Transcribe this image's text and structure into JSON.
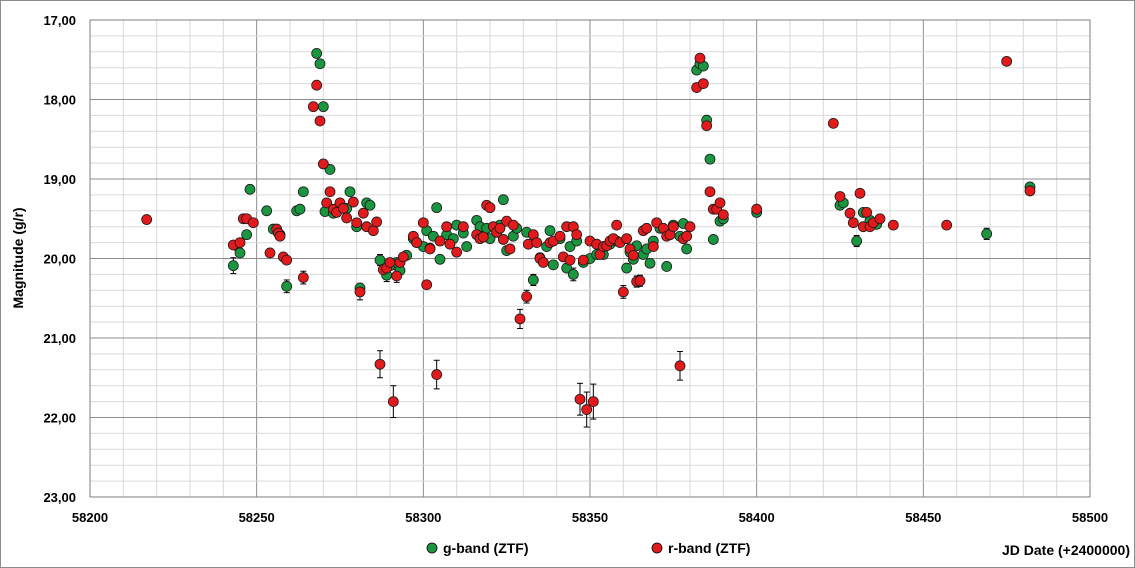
{
  "chart_data": {
    "type": "scatter",
    "title": "",
    "xlabel": "JD Date (+2400000)",
    "ylabel": "Magnitude (g/r)",
    "xlim": [
      58200,
      58500
    ],
    "ylim": [
      17.0,
      23.0
    ],
    "y_inverted": true,
    "grid": true,
    "legend": "bottom",
    "x_tick_labels": [
      "58200",
      "58250",
      "58300",
      "58350",
      "58400",
      "58450",
      "58500"
    ],
    "y_tick_labels": [
      "17,00",
      "18,00",
      "19,00",
      "20,00",
      "21,00",
      "22,00",
      "23,00"
    ],
    "series": [
      {
        "name": "g-band (ZTF)",
        "color": "#1a9641",
        "points": [
          [
            58243,
            20.09
          ],
          [
            58244,
            19.84
          ],
          [
            58245,
            19.93
          ],
          [
            58247,
            19.7
          ],
          [
            58248,
            19.13
          ],
          [
            58253,
            19.4
          ],
          [
            58255,
            19.63
          ],
          [
            58257,
            19.7
          ],
          [
            58259,
            20.35
          ],
          [
            58262,
            19.4
          ],
          [
            58263,
            19.38
          ],
          [
            58264,
            19.16
          ],
          [
            58268,
            17.42
          ],
          [
            58269,
            17.55
          ],
          [
            58270,
            18.09
          ],
          [
            58270.5,
            19.41
          ],
          [
            58272,
            18.88
          ],
          [
            58273,
            19.43
          ],
          [
            58275,
            19.33
          ],
          [
            58277,
            19.37
          ],
          [
            58278,
            19.16
          ],
          [
            58280,
            19.6
          ],
          [
            58281,
            20.37
          ],
          [
            58283,
            19.3
          ],
          [
            58284,
            19.33
          ],
          [
            58287,
            20.02
          ],
          [
            58289,
            20.21
          ],
          [
            58290,
            20.09
          ],
          [
            58292,
            20.05
          ],
          [
            58293,
            20.15
          ],
          [
            58295,
            19.96
          ],
          [
            58297,
            19.75
          ],
          [
            58298,
            19.8
          ],
          [
            58300,
            19.85
          ],
          [
            58301,
            19.65
          ],
          [
            58302,
            19.87
          ],
          [
            58303,
            19.72
          ],
          [
            58304,
            19.36
          ],
          [
            58305,
            20.01
          ],
          [
            58307,
            19.7
          ],
          [
            58309,
            19.75
          ],
          [
            58310,
            19.58
          ],
          [
            58312,
            19.68
          ],
          [
            58313,
            19.85
          ],
          [
            58316,
            19.52
          ],
          [
            58317,
            19.6
          ],
          [
            58318,
            19.72
          ],
          [
            58319,
            19.62
          ],
          [
            58320,
            19.75
          ],
          [
            58322,
            19.67
          ],
          [
            58323,
            19.58
          ],
          [
            58324,
            19.26
          ],
          [
            58325,
            19.9
          ],
          [
            58327,
            19.72
          ],
          [
            58328,
            19.62
          ],
          [
            58331,
            19.67
          ],
          [
            58333,
            20.27
          ],
          [
            58335,
            19.99
          ],
          [
            58337,
            19.85
          ],
          [
            58338,
            19.65
          ],
          [
            58339,
            20.08
          ],
          [
            58341,
            19.75
          ],
          [
            58343,
            20.12
          ],
          [
            58344,
            19.85
          ],
          [
            58345,
            20.2
          ],
          [
            58346,
            19.78
          ],
          [
            58348,
            20.05
          ],
          [
            58350,
            20.0
          ],
          [
            58352,
            19.95
          ],
          [
            58354,
            19.95
          ],
          [
            58356,
            19.82
          ],
          [
            58358,
            19.78
          ],
          [
            58361,
            20.12
          ],
          [
            58362,
            19.92
          ],
          [
            58363,
            20.01
          ],
          [
            58364,
            19.84
          ],
          [
            58366,
            19.95
          ],
          [
            58367,
            19.88
          ],
          [
            58368,
            20.06
          ],
          [
            58369,
            19.78
          ],
          [
            58371,
            19.62
          ],
          [
            58373,
            20.1
          ],
          [
            58374,
            19.7
          ],
          [
            58375,
            19.58
          ],
          [
            58377,
            19.72
          ],
          [
            58378,
            19.56
          ],
          [
            58379,
            19.88
          ],
          [
            58382,
            17.63
          ],
          [
            58383,
            17.55
          ],
          [
            58384,
            17.58
          ],
          [
            58385,
            18.26
          ],
          [
            58386,
            18.75
          ],
          [
            58387,
            19.76
          ],
          [
            58389,
            19.53
          ],
          [
            58390,
            19.5
          ],
          [
            58400,
            19.42
          ],
          [
            58425,
            19.33
          ],
          [
            58426,
            19.3
          ],
          [
            58430,
            19.78
          ],
          [
            58432,
            19.42
          ],
          [
            58434,
            19.52
          ],
          [
            58436,
            19.57
          ],
          [
            58469,
            19.69
          ],
          [
            58482,
            19.1
          ]
        ]
      },
      {
        "name": "r-band (ZTF)",
        "color": "#e31a1c",
        "points": [
          [
            58217,
            19.51
          ],
          [
            58243,
            19.83
          ],
          [
            58245,
            19.8
          ],
          [
            58246,
            19.5
          ],
          [
            58247,
            19.5
          ],
          [
            58249,
            19.55
          ],
          [
            58254,
            19.93
          ],
          [
            58256,
            19.63
          ],
          [
            58256.5,
            19.68
          ],
          [
            58257,
            19.72
          ],
          [
            58258,
            19.98
          ],
          [
            58259,
            20.02
          ],
          [
            58264,
            20.24
          ],
          [
            58267,
            18.09
          ],
          [
            58268,
            17.82
          ],
          [
            58269,
            18.27
          ],
          [
            58270,
            18.81
          ],
          [
            58271,
            19.3
          ],
          [
            58272,
            19.16
          ],
          [
            58273,
            19.38
          ],
          [
            58274,
            19.42
          ],
          [
            58275,
            19.3
          ],
          [
            58276,
            19.37
          ],
          [
            58277,
            19.49
          ],
          [
            58279,
            19.29
          ],
          [
            58280,
            19.55
          ],
          [
            58281,
            20.42
          ],
          [
            58282,
            19.43
          ],
          [
            58283,
            19.6
          ],
          [
            58285,
            19.65
          ],
          [
            58286,
            19.54
          ],
          [
            58287,
            21.33
          ],
          [
            58288,
            20.14
          ],
          [
            58289,
            20.12
          ],
          [
            58290,
            20.05
          ],
          [
            58291,
            21.8
          ],
          [
            58292,
            20.22
          ],
          [
            58293,
            20.05
          ],
          [
            58294,
            19.98
          ],
          [
            58297,
            19.72
          ],
          [
            58298,
            19.8
          ],
          [
            58300,
            19.55
          ],
          [
            58301,
            20.33
          ],
          [
            58302,
            19.88
          ],
          [
            58304,
            21.46
          ],
          [
            58305,
            19.78
          ],
          [
            58307,
            19.6
          ],
          [
            58308,
            19.82
          ],
          [
            58310,
            19.92
          ],
          [
            58312,
            19.6
          ],
          [
            58316,
            19.7
          ],
          [
            58317,
            19.75
          ],
          [
            58318,
            19.73
          ],
          [
            58319,
            19.33
          ],
          [
            58320,
            19.36
          ],
          [
            58321,
            19.6
          ],
          [
            58322,
            19.67
          ],
          [
            58323,
            19.62
          ],
          [
            58324,
            19.76
          ],
          [
            58325,
            19.53
          ],
          [
            58326,
            19.88
          ],
          [
            58327,
            19.58
          ],
          [
            58329,
            20.76
          ],
          [
            58331,
            20.48
          ],
          [
            58331.5,
            19.82
          ],
          [
            58333,
            19.7
          ],
          [
            58334,
            19.8
          ],
          [
            58335,
            20.0
          ],
          [
            58336,
            20.05
          ],
          [
            58338,
            19.8
          ],
          [
            58339,
            19.78
          ],
          [
            58341,
            19.72
          ],
          [
            58342,
            19.98
          ],
          [
            58343,
            19.6
          ],
          [
            58344,
            20.02
          ],
          [
            58345,
            19.6
          ],
          [
            58346,
            19.7
          ],
          [
            58347,
            21.77
          ],
          [
            58348,
            20.02
          ],
          [
            58349,
            21.9
          ],
          [
            58350,
            19.78
          ],
          [
            58351,
            21.8
          ],
          [
            58352,
            19.82
          ],
          [
            58353,
            19.95
          ],
          [
            58354,
            19.85
          ],
          [
            58355,
            19.84
          ],
          [
            58356,
            19.78
          ],
          [
            58357,
            19.75
          ],
          [
            58358,
            19.58
          ],
          [
            58359,
            19.8
          ],
          [
            58360,
            20.42
          ],
          [
            58361,
            19.75
          ],
          [
            58362,
            19.88
          ],
          [
            58363,
            19.96
          ],
          [
            58364,
            20.29
          ],
          [
            58365,
            20.28
          ],
          [
            58366,
            19.65
          ],
          [
            58367,
            19.62
          ],
          [
            58369,
            19.85
          ],
          [
            58370,
            19.55
          ],
          [
            58372,
            19.62
          ],
          [
            58373,
            19.72
          ],
          [
            58374,
            19.7
          ],
          [
            58375,
            19.6
          ],
          [
            58377,
            21.35
          ],
          [
            58378,
            19.75
          ],
          [
            58379,
            19.72
          ],
          [
            58380,
            19.6
          ],
          [
            58382,
            17.85
          ],
          [
            58383,
            17.48
          ],
          [
            58384,
            17.8
          ],
          [
            58385,
            18.33
          ],
          [
            58386,
            19.16
          ],
          [
            58387,
            19.38
          ],
          [
            58388,
            19.38
          ],
          [
            58389,
            19.3
          ],
          [
            58390,
            19.45
          ],
          [
            58400,
            19.38
          ],
          [
            58423,
            18.3
          ],
          [
            58425,
            19.22
          ],
          [
            58428,
            19.43
          ],
          [
            58429,
            19.55
          ],
          [
            58431,
            19.18
          ],
          [
            58432,
            19.6
          ],
          [
            58433,
            19.42
          ],
          [
            58434,
            19.6
          ],
          [
            58435,
            19.55
          ],
          [
            58437,
            19.5
          ],
          [
            58441,
            19.58
          ],
          [
            58457,
            19.58
          ],
          [
            58475,
            17.52
          ],
          [
            58482,
            19.15
          ]
        ]
      }
    ]
  },
  "error_bars": [
    [
      "g",
      58243,
      0.1
    ],
    [
      "r",
      58281,
      0.1
    ],
    [
      "g",
      58287,
      0.07
    ],
    [
      "r",
      58287,
      0.17
    ],
    [
      "g",
      58289,
      0.08
    ],
    [
      "r",
      58291,
      0.2
    ],
    [
      "r",
      58292,
      0.08
    ],
    [
      "g",
      58259,
      0.08
    ],
    [
      "r",
      58264,
      0.08
    ],
    [
      "r",
      58304,
      0.18
    ],
    [
      "r",
      58329,
      0.12
    ],
    [
      "r",
      58331,
      0.08
    ],
    [
      "g",
      58333,
      0.07
    ],
    [
      "g",
      58345,
      0.08
    ],
    [
      "r",
      58347,
      0.2
    ],
    [
      "r",
      58349,
      0.22
    ],
    [
      "r",
      58351,
      0.22
    ],
    [
      "r",
      58360,
      0.08
    ],
    [
      "r",
      58364,
      0.07
    ],
    [
      "r",
      58365,
      0.07
    ],
    [
      "r",
      58377,
      0.18
    ],
    [
      "g",
      58430,
      0.07
    ],
    [
      "g",
      58469,
      0.07
    ],
    [
      "r",
      58400,
      0.05
    ]
  ]
}
